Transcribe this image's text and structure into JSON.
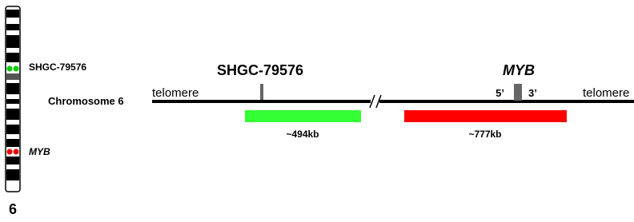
{
  "ideogram": {
    "chromosome_number": "6",
    "green_label": "SHGC-79576",
    "red_label": "MYB"
  },
  "map": {
    "chromosome_label": "Chromosome 6",
    "left_end": "telomere",
    "right_end": "telomere",
    "probe_1": {
      "name": "SHGC-79576",
      "size": "~494kb"
    },
    "probe_2": {
      "name": "MYB",
      "five_prime": "5’",
      "three_prime": "3’",
      "size": "~777kb"
    }
  }
}
